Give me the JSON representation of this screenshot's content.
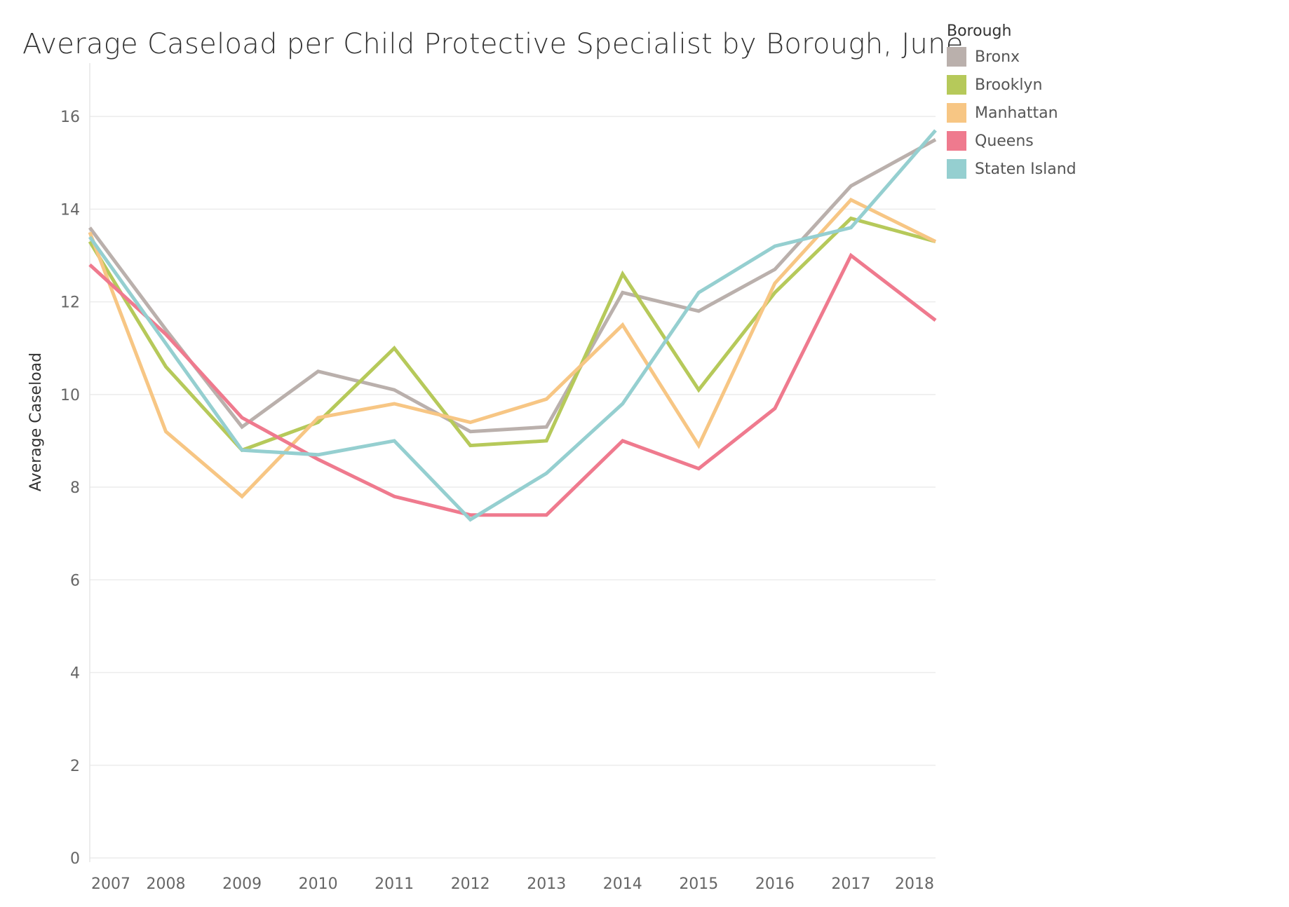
{
  "chart_data": {
    "type": "line",
    "title": "Average Caseload per Child Protective Specialist by Borough, June",
    "xlabel": "",
    "ylabel": "Average Caseload",
    "ylim": [
      0,
      17
    ],
    "yticks": [
      0,
      2,
      4,
      6,
      8,
      10,
      12,
      14,
      16
    ],
    "x": [
      2007,
      2008,
      2009,
      2010,
      2011,
      2012,
      2013,
      2014,
      2015,
      2016,
      2017,
      2018
    ],
    "x_labels": [
      "2007",
      "2008",
      "2009",
      "2010",
      "2011",
      "2012",
      "2013",
      "2014",
      "2015",
      "2016",
      "2017",
      "2018"
    ],
    "x_positions_fraction": [
      0.0,
      0.09,
      0.18,
      0.27,
      0.36,
      0.45,
      0.54,
      0.63,
      0.72,
      0.81,
      0.9,
      1.0
    ],
    "grid": true,
    "legend": {
      "title": "Borough",
      "position": "top-right"
    },
    "series": [
      {
        "name": "Bronx",
        "color": "#bab0ac",
        "values": [
          13.6,
          11.4,
          9.3,
          10.5,
          10.1,
          9.2,
          9.3,
          12.2,
          11.8,
          12.7,
          14.5,
          15.5
        ]
      },
      {
        "name": "Brooklyn",
        "color": "#b6c95a",
        "values": [
          13.3,
          10.6,
          8.8,
          9.4,
          11.0,
          8.9,
          9.0,
          12.6,
          10.1,
          12.2,
          13.8,
          13.3
        ]
      },
      {
        "name": "Manhattan",
        "color": "#f7c684",
        "values": [
          13.5,
          9.2,
          7.8,
          9.5,
          9.8,
          9.4,
          9.9,
          11.5,
          8.9,
          12.4,
          14.2,
          13.3
        ]
      },
      {
        "name": "Queens",
        "color": "#ef7a8e",
        "values": [
          12.8,
          11.3,
          9.5,
          8.6,
          7.8,
          7.4,
          7.4,
          9.0,
          8.4,
          9.7,
          13.0,
          11.6
        ]
      },
      {
        "name": "Staten Island",
        "color": "#95cfd0",
        "values": [
          13.4,
          11.1,
          8.8,
          8.7,
          9.0,
          7.3,
          8.3,
          9.8,
          12.2,
          13.2,
          13.6,
          15.7
        ]
      }
    ]
  }
}
